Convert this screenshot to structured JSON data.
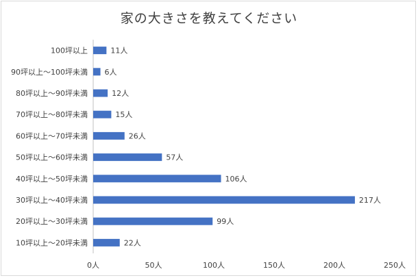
{
  "chart_data": {
    "type": "bar",
    "orientation": "horizontal",
    "title": "家の大きさを教えてください",
    "categories": [
      "100坪以上",
      "90坪以上～100坪未満",
      "80坪以上～90坪未満",
      "70坪以上～80坪未満",
      "60坪以上～70坪未満",
      "50坪以上～60坪未満",
      "40坪以上～50坪未満",
      "30坪以上～40坪未満",
      "20坪以上～30坪未満",
      "10坪以上～20坪未満"
    ],
    "values": [
      11,
      6,
      12,
      15,
      26,
      57,
      106,
      217,
      99,
      22
    ],
    "data_labels": [
      "11人",
      "6人",
      "12人",
      "15人",
      "26人",
      "57人",
      "106人",
      "217人",
      "99人",
      "22人"
    ],
    "xlim": [
      0,
      250
    ],
    "x_ticks": [
      0,
      50,
      100,
      150,
      200,
      250
    ],
    "x_tick_labels": [
      "0人",
      "50人",
      "100人",
      "150人",
      "200人",
      "250人"
    ],
    "bar_color": "#4472c4",
    "grid": false,
    "legend": "none"
  }
}
